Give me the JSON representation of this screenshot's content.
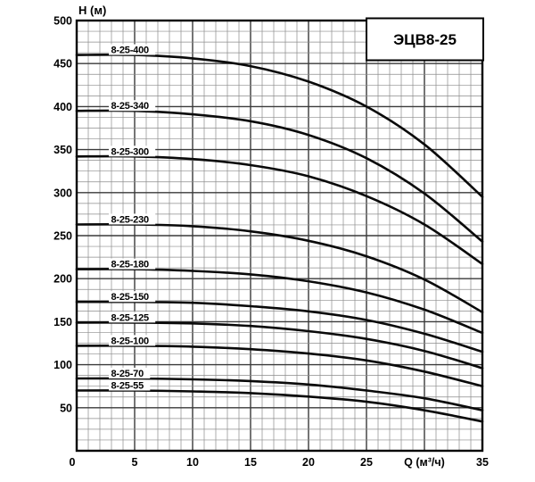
{
  "chart_data": {
    "type": "line",
    "title": "ЭЦВ8-25",
    "xlabel": "Q (м³/ч)",
    "ylabel": "H (м)",
    "xlim": [
      0,
      35
    ],
    "ylim": [
      0,
      500
    ],
    "x_ticks": [
      0,
      5,
      10,
      15,
      20,
      25,
      35
    ],
    "xlabel_at_x": 30,
    "y_ticks": [
      50,
      100,
      150,
      200,
      250,
      300,
      350,
      400,
      450,
      500
    ],
    "grid": {
      "minor_x_step": 1,
      "major_x_step": 5,
      "minor_y_step": 12.5,
      "major_y_step": 50,
      "grid_on": true
    },
    "legend_position": "inline-curve-labels",
    "x": [
      0,
      5,
      10,
      15,
      20,
      25,
      30,
      35
    ],
    "series": [
      {
        "name": "8-25-400",
        "values": [
          460,
          460,
          456,
          447,
          429,
          400,
          356,
          295
        ]
      },
      {
        "name": "8-25-340",
        "values": [
          395,
          395,
          391,
          383,
          367,
          340,
          299,
          243
        ]
      },
      {
        "name": "8-25-300",
        "values": [
          342,
          342,
          339,
          332,
          319,
          296,
          263,
          217
        ]
      },
      {
        "name": "8-25-230",
        "values": [
          263,
          263,
          261,
          255,
          244,
          226,
          199,
          161
        ]
      },
      {
        "name": "8-25-180",
        "values": [
          211,
          211,
          209,
          205,
          197,
          184,
          164,
          137
        ]
      },
      {
        "name": "8-25-150",
        "values": [
          173,
          173,
          172,
          168,
          162,
          152,
          136,
          115
        ]
      },
      {
        "name": "8-25-125",
        "values": [
          149,
          149,
          148,
          145,
          139,
          130,
          116,
          96
        ]
      },
      {
        "name": "8-25-100",
        "values": [
          122,
          122,
          121,
          118,
          113,
          105,
          92,
          75
        ]
      },
      {
        "name": "8-25-70",
        "values": [
          84,
          84,
          83,
          81,
          77,
          70,
          61,
          47
        ]
      },
      {
        "name": "8-25-55",
        "values": [
          70,
          70,
          69,
          67,
          63,
          57,
          47,
          34
        ]
      }
    ],
    "colors": {
      "background": "#ffffff",
      "curve": "#0a0a0a",
      "grid_minor": "#8c8c8c",
      "grid_major": "#3a3a3a",
      "axis_border": "#000000",
      "title_box_fill": "#ffffff",
      "title_box_border": "#000000"
    }
  }
}
